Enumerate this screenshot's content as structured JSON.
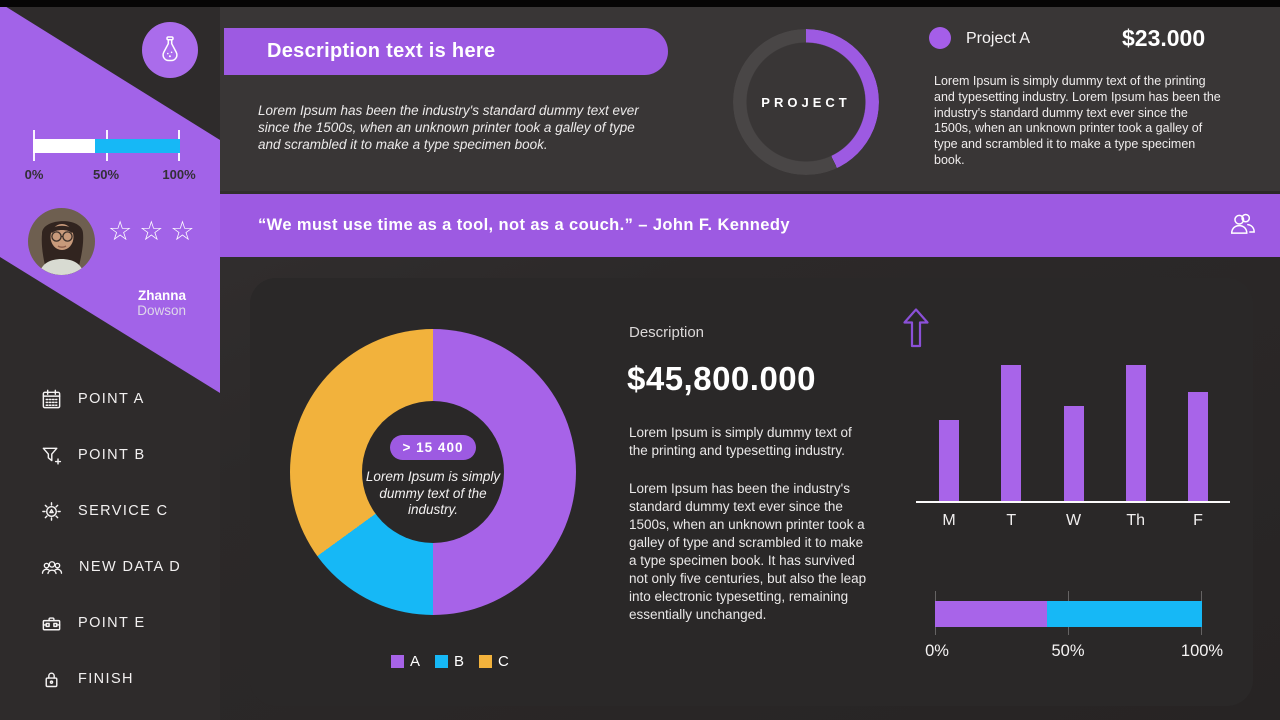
{
  "colors": {
    "purple": "#a263e8",
    "purple_banner": "#9d5ae2",
    "cyan": "#16b8f6",
    "yellow": "#f2b23c",
    "ring_track": "#494646"
  },
  "sidebar": {
    "progress": {
      "percent": 42,
      "tick_labels": [
        "0%",
        "50%",
        "100%"
      ]
    },
    "profile": {
      "first_name": "Zhanna",
      "last_name": "Dowson",
      "stars": "☆☆☆"
    },
    "menu": [
      {
        "icon": "calendar-icon",
        "label": "POINT A"
      },
      {
        "icon": "funnel-plus-icon",
        "label": "POINT B"
      },
      {
        "icon": "gear-icon",
        "label": "SERVICE C"
      },
      {
        "icon": "people-icon",
        "label": "NEW DATA D"
      },
      {
        "icon": "toolbox-icon",
        "label": "POINT E"
      },
      {
        "icon": "lock-icon",
        "label": "FINISH"
      }
    ]
  },
  "top": {
    "pill_title": "Description text is here",
    "intro_text": "Lorem Ipsum has been the industry's standard dummy text ever since the 1500s, when an unknown printer took a galley of type and scrambled it to make a type specimen book.",
    "ring": {
      "label": "PROJECT",
      "percent": 43
    },
    "project": {
      "name": "Project A",
      "amount": "$23.000",
      "description": "Lorem Ipsum is simply dummy text of the printing and typesetting industry. Lorem Ipsum has been the industry's standard dummy text ever since the 1500s, when an unknown printer took a galley of type and scrambled it to make a type specimen book."
    }
  },
  "quote": {
    "text": "“We must use time as a tool, not as a couch.” – John F. Kennedy"
  },
  "main": {
    "donut": {
      "center_badge": "> 15 400",
      "center_text": "Lorem Ipsum is simply dummy text of the industry.",
      "slices": [
        {
          "label": "A",
          "color": "#a763e8",
          "from": 0,
          "to": 180
        },
        {
          "label": "B",
          "color": "#16b8f6",
          "from": 180,
          "to": 234
        },
        {
          "label": "C",
          "color": "#f2b23c",
          "from": 234,
          "to": 360
        }
      ]
    },
    "description": {
      "label": "Description",
      "amount": "$45,800.000",
      "para1": "Lorem Ipsum is simply dummy text of the printing and typesetting industry.",
      "para2": "Lorem Ipsum has been the industry's standard dummy text ever since the 1500s, when an unknown printer took a galley of type and scrambled it to make a type specimen book. It has survived not only five centuries, but also the leap into electronic typesetting, remaining essentially unchanged."
    },
    "bar_chart": {
      "categories": [
        "M",
        "T",
        "W",
        "Th",
        "F"
      ],
      "values": [
        60,
        100,
        70,
        100,
        80
      ],
      "max": 100,
      "bar_color": "#a864e9"
    },
    "progress": {
      "percent": 42,
      "tick_labels": [
        "0%",
        "50%",
        "100%"
      ]
    }
  },
  "chart_data": [
    {
      "type": "pie",
      "title": "main-donut",
      "labels": [
        "A",
        "B",
        "C"
      ],
      "values": [
        50,
        15,
        35
      ],
      "colors": [
        "#a763e8",
        "#16b8f6",
        "#f2b23c"
      ],
      "center_label": "> 15 400",
      "legend_position": "bottom"
    },
    {
      "type": "bar",
      "title": "weekday-bars",
      "categories": [
        "M",
        "T",
        "W",
        "Th",
        "F"
      ],
      "values": [
        60,
        100,
        70,
        100,
        80
      ],
      "ylim": [
        0,
        100
      ],
      "bar_color": "#a864e9",
      "grid": false
    },
    {
      "type": "donut",
      "title": "PROJECT",
      "values": [
        43,
        57
      ],
      "colors": [
        "#9d5ae2",
        "#494646"
      ]
    },
    {
      "type": "progress",
      "title": "sidebar-progress",
      "tick_labels": [
        "0%",
        "50%",
        "100%"
      ],
      "segments": [
        {
          "color": "#ffffff",
          "value": 42
        },
        {
          "color": "#16b8f6",
          "value": 58
        }
      ]
    },
    {
      "type": "progress",
      "title": "card-progress",
      "tick_labels": [
        "0%",
        "50%",
        "100%"
      ],
      "segments": [
        {
          "color": "#a864e9",
          "value": 42
        },
        {
          "color": "#16b8f6",
          "value": 58
        }
      ]
    }
  ]
}
